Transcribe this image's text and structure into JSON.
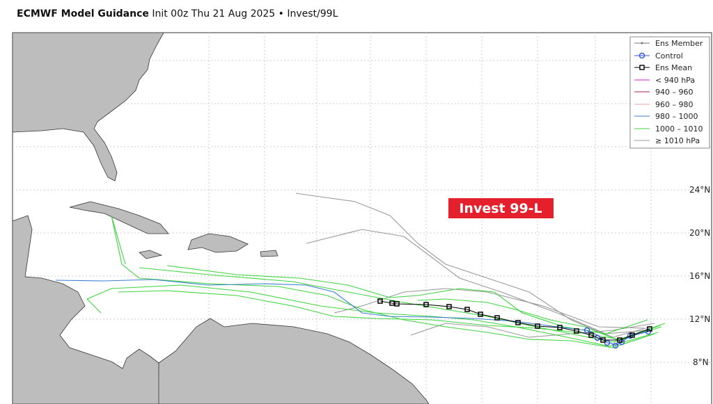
{
  "header": {
    "title": "ECMWF Model Guidance",
    "subtitle": "Init 00z Thu 21 Aug 2025 • Invest/99L"
  },
  "legend": {
    "items": [
      "Ens Member",
      "Control",
      "Ens Mean",
      "< 940 hPa",
      "940 – 960",
      "960 – 980",
      "980 – 1000",
      "1000 – 1010",
      "≥ 1010 hPa"
    ]
  },
  "latitude_labels": [
    "24°N",
    "20°N",
    "16°N",
    "12°N",
    "8°N"
  ],
  "annotation": "Invest 99-L"
}
